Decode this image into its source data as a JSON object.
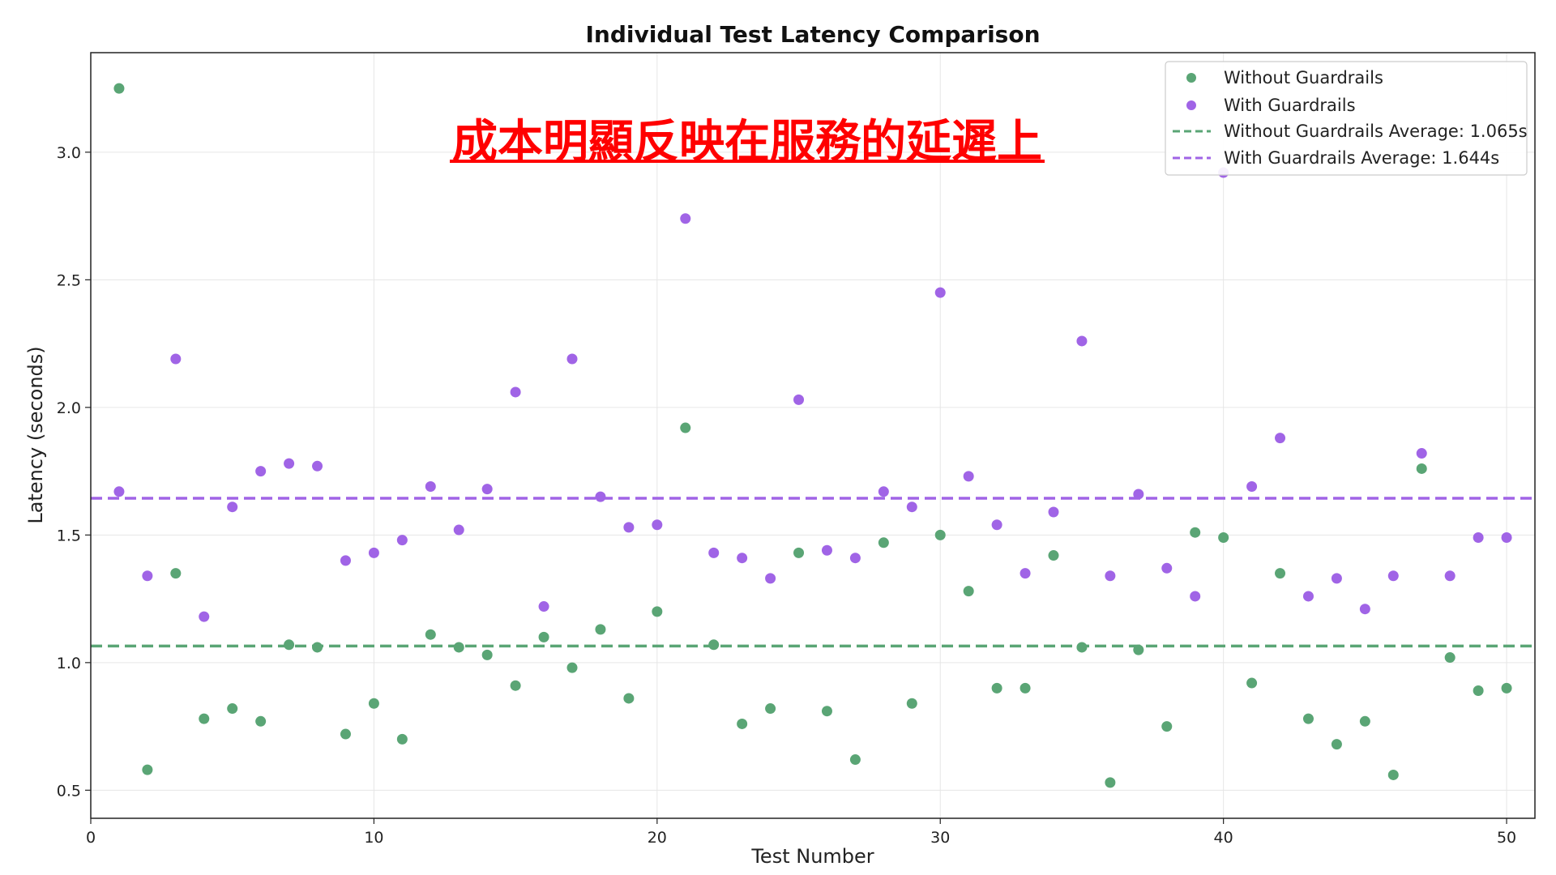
{
  "chart_data": {
    "type": "scatter",
    "title": "Individual Test Latency Comparison",
    "xlabel": "Test Number",
    "ylabel": "Latency (seconds)",
    "xlim": [
      0,
      51
    ],
    "ylim": [
      0.39,
      3.39
    ],
    "xticks": [
      0,
      10,
      20,
      30,
      40,
      50
    ],
    "yticks": [
      0.5,
      1.0,
      1.5,
      2.0,
      2.5,
      3.0
    ],
    "grid": true,
    "legend_position": "top-right",
    "annotation": "成本明顯反映在服務的延遲上",
    "series": [
      {
        "name": "Without Guardrails",
        "color": "#5aa575",
        "x": [
          1,
          2,
          3,
          4,
          5,
          6,
          7,
          8,
          9,
          10,
          11,
          12,
          13,
          14,
          15,
          16,
          17,
          18,
          19,
          20,
          21,
          22,
          23,
          24,
          25,
          26,
          27,
          28,
          29,
          30,
          31,
          32,
          33,
          34,
          35,
          36,
          37,
          38,
          39,
          40,
          41,
          42,
          43,
          44,
          45,
          46,
          47,
          48,
          49,
          50
        ],
        "y": [
          3.25,
          0.58,
          1.35,
          0.78,
          0.82,
          0.77,
          1.07,
          1.06,
          0.72,
          0.84,
          0.7,
          1.11,
          1.06,
          1.03,
          0.91,
          1.1,
          0.98,
          1.13,
          0.86,
          1.2,
          1.92,
          1.07,
          0.76,
          0.82,
          1.43,
          0.81,
          0.62,
          1.47,
          0.84,
          1.5,
          1.28,
          0.9,
          0.9,
          1.42,
          1.06,
          0.53,
          1.05,
          0.75,
          1.51,
          1.49,
          0.92,
          1.35,
          0.78,
          0.68,
          0.77,
          0.56,
          1.76,
          1.02,
          0.89,
          0.9
        ]
      },
      {
        "name": "With Guardrails",
        "color": "#a064e6",
        "x": [
          1,
          2,
          3,
          4,
          5,
          6,
          7,
          8,
          9,
          10,
          11,
          12,
          13,
          14,
          15,
          16,
          17,
          18,
          19,
          20,
          21,
          22,
          23,
          24,
          25,
          26,
          27,
          28,
          29,
          30,
          31,
          32,
          33,
          34,
          35,
          36,
          37,
          38,
          39,
          40,
          41,
          42,
          43,
          44,
          45,
          46,
          47,
          48,
          49,
          50
        ],
        "y": [
          1.67,
          1.34,
          2.19,
          1.18,
          1.61,
          1.75,
          1.78,
          1.77,
          1.4,
          1.43,
          1.48,
          1.69,
          1.52,
          1.68,
          2.06,
          1.22,
          2.19,
          1.65,
          1.53,
          1.54,
          2.74,
          1.43,
          1.41,
          1.33,
          2.03,
          1.44,
          1.41,
          1.67,
          1.61,
          2.45,
          1.73,
          1.54,
          1.35,
          1.59,
          2.26,
          1.34,
          1.66,
          1.37,
          1.26,
          2.92,
          1.69,
          1.88,
          1.26,
          1.33,
          1.21,
          1.34,
          1.82,
          1.34,
          1.49,
          1.49
        ]
      }
    ],
    "reference_lines": [
      {
        "name": "Without Guardrails Average: 1.065s",
        "value": 1.065,
        "color": "#5aa575",
        "style": "dashed"
      },
      {
        "name": "With Guardrails Average: 1.644s",
        "value": 1.644,
        "color": "#a064e6",
        "style": "dashed"
      }
    ]
  }
}
